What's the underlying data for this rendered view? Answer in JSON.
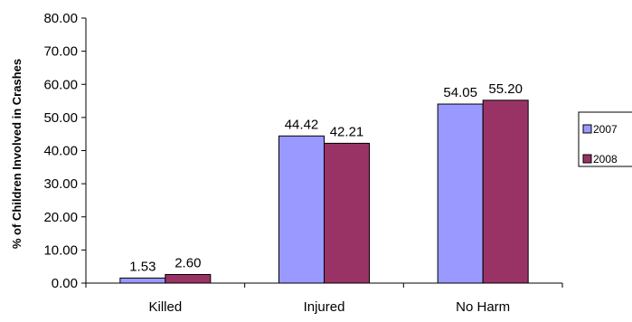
{
  "chart_data": {
    "type": "bar",
    "title": "",
    "xlabel": "",
    "ylabel": "% of Children Involved in Crashes",
    "ylim": [
      0,
      80
    ],
    "y_ticks": [
      "0.00",
      "10.00",
      "20.00",
      "30.00",
      "40.00",
      "50.00",
      "60.00",
      "70.00",
      "80.00"
    ],
    "categories": [
      "Killed",
      "Injured",
      "No Harm"
    ],
    "series": [
      {
        "name": "2007",
        "values": [
          1.53,
          44.42,
          54.05
        ],
        "labels": [
          "1.53",
          "44.42",
          "54.05"
        ],
        "color": "#9999ff"
      },
      {
        "name": "2008",
        "values": [
          2.6,
          42.21,
          55.2
        ],
        "labels": [
          "2.60",
          "42.21",
          "55.20"
        ],
        "color": "#993366"
      }
    ],
    "grid": false,
    "legend_position": "right"
  }
}
